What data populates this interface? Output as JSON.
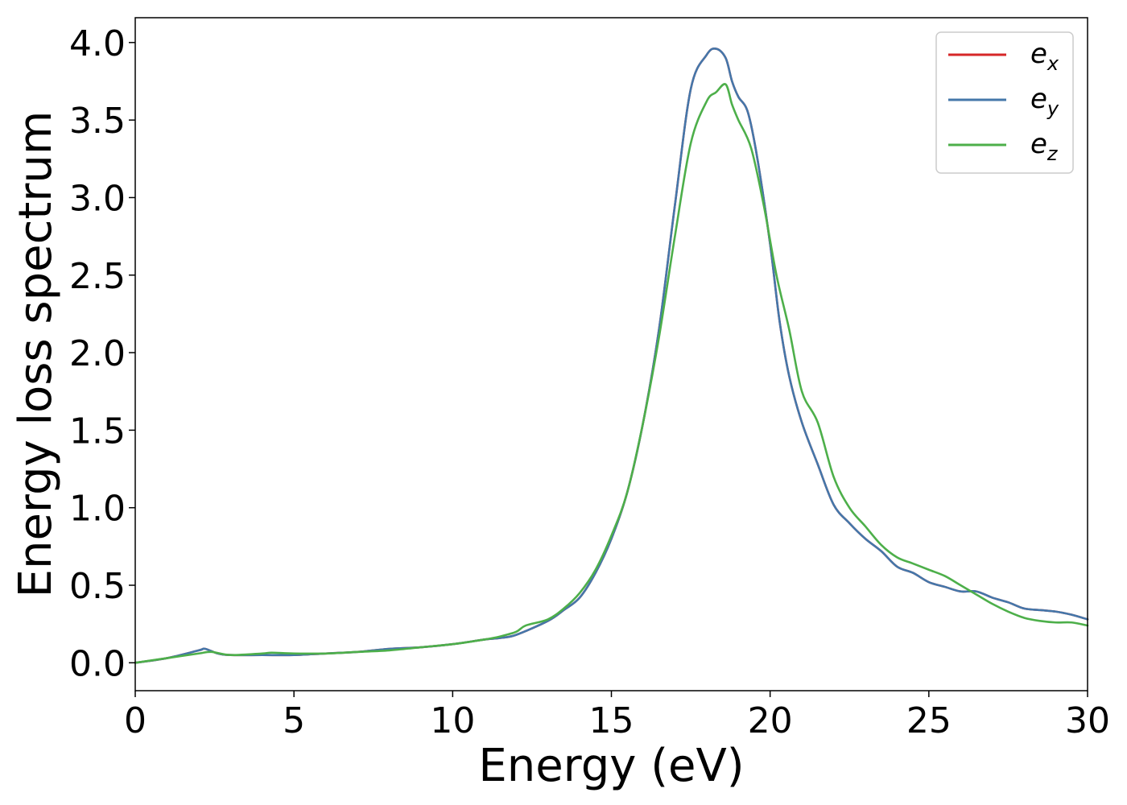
{
  "chart_data": {
    "type": "line",
    "title": "",
    "xlabel": "Energy (eV)",
    "ylabel": "Energy loss spectrum",
    "xlim": [
      0,
      30
    ],
    "ylim": [
      -0.18,
      4.16
    ],
    "xticks": [
      0,
      5,
      10,
      15,
      20,
      25,
      30
    ],
    "xtick_labels": [
      "0",
      "5",
      "10",
      "15",
      "20",
      "25",
      "30"
    ],
    "yticks": [
      0.0,
      0.5,
      1.0,
      1.5,
      2.0,
      2.5,
      3.0,
      3.5,
      4.0
    ],
    "ytick_labels": [
      "0.0",
      "0.5",
      "1.0",
      "1.5",
      "2.0",
      "2.5",
      "3.0",
      "3.5",
      "4.0"
    ],
    "grid": false,
    "legend_position": "top-right",
    "series": [
      {
        "name": "e",
        "subscript": "x",
        "color": "#d62728",
        "x": [
          0,
          1,
          2,
          2.2,
          2.6,
          3,
          4,
          5,
          6,
          7,
          8,
          9,
          10,
          11,
          11.5,
          12,
          13,
          13.5,
          14,
          14.5,
          15,
          15.5,
          16,
          16.5,
          17,
          17.5,
          18,
          18.3,
          18.6,
          18.8,
          19,
          19.3,
          19.6,
          20,
          20.3,
          20.6,
          21,
          21.5,
          22,
          22.5,
          23,
          23.5,
          24,
          24.5,
          25,
          25.5,
          26,
          26.5,
          27,
          27.5,
          28,
          28.5,
          29,
          29.5,
          30
        ],
        "y": [
          0.0,
          0.03,
          0.08,
          0.09,
          0.06,
          0.05,
          0.05,
          0.05,
          0.06,
          0.07,
          0.09,
          0.1,
          0.12,
          0.15,
          0.16,
          0.18,
          0.27,
          0.34,
          0.42,
          0.58,
          0.8,
          1.1,
          1.55,
          2.15,
          2.95,
          3.7,
          3.92,
          3.96,
          3.9,
          3.75,
          3.65,
          3.55,
          3.25,
          2.7,
          2.2,
          1.85,
          1.55,
          1.28,
          1.02,
          0.9,
          0.8,
          0.72,
          0.62,
          0.58,
          0.52,
          0.49,
          0.46,
          0.46,
          0.42,
          0.39,
          0.35,
          0.34,
          0.33,
          0.31,
          0.28
        ]
      },
      {
        "name": "e",
        "subscript": "y",
        "color": "#4477aa",
        "x": [
          0,
          1,
          2,
          2.2,
          2.6,
          3,
          4,
          5,
          6,
          7,
          8,
          9,
          10,
          11,
          11.5,
          12,
          13,
          13.5,
          14,
          14.5,
          15,
          15.5,
          16,
          16.5,
          17,
          17.5,
          18,
          18.3,
          18.6,
          18.8,
          19,
          19.3,
          19.6,
          20,
          20.3,
          20.6,
          21,
          21.5,
          22,
          22.5,
          23,
          23.5,
          24,
          24.5,
          25,
          25.5,
          26,
          26.5,
          27,
          27.5,
          28,
          28.5,
          29,
          29.5,
          30
        ],
        "y": [
          0.0,
          0.03,
          0.08,
          0.09,
          0.06,
          0.05,
          0.05,
          0.05,
          0.06,
          0.07,
          0.09,
          0.1,
          0.12,
          0.15,
          0.16,
          0.18,
          0.27,
          0.34,
          0.42,
          0.58,
          0.8,
          1.1,
          1.55,
          2.15,
          2.95,
          3.7,
          3.92,
          3.96,
          3.9,
          3.75,
          3.65,
          3.55,
          3.25,
          2.7,
          2.2,
          1.85,
          1.55,
          1.28,
          1.02,
          0.9,
          0.8,
          0.72,
          0.62,
          0.58,
          0.52,
          0.49,
          0.46,
          0.46,
          0.42,
          0.39,
          0.35,
          0.34,
          0.33,
          0.31,
          0.28
        ]
      },
      {
        "name": "e",
        "subscript": "z",
        "color": "#4daf4a",
        "x": [
          0,
          1,
          2,
          2.4,
          3,
          4,
          4.3,
          5,
          6,
          7,
          8,
          9,
          10,
          11,
          11.5,
          12,
          12.3,
          13,
          13.5,
          14,
          14.5,
          15,
          15.5,
          16,
          16.5,
          17,
          17.5,
          18,
          18.3,
          18.6,
          18.8,
          19,
          19.4,
          19.8,
          20.2,
          20.6,
          21,
          21.5,
          22,
          22.5,
          23,
          23.5,
          24,
          24.5,
          25,
          25.5,
          26,
          26.5,
          27,
          27.5,
          28,
          28.5,
          29,
          29.5,
          30
        ],
        "y": [
          0.0,
          0.03,
          0.06,
          0.07,
          0.05,
          0.06,
          0.065,
          0.06,
          0.06,
          0.07,
          0.08,
          0.1,
          0.12,
          0.15,
          0.17,
          0.2,
          0.24,
          0.28,
          0.35,
          0.45,
          0.6,
          0.82,
          1.1,
          1.55,
          2.1,
          2.75,
          3.35,
          3.62,
          3.68,
          3.73,
          3.6,
          3.5,
          3.32,
          2.95,
          2.5,
          2.15,
          1.75,
          1.55,
          1.2,
          1.0,
          0.88,
          0.76,
          0.68,
          0.64,
          0.6,
          0.56,
          0.5,
          0.44,
          0.38,
          0.33,
          0.29,
          0.27,
          0.26,
          0.26,
          0.24
        ]
      }
    ]
  }
}
